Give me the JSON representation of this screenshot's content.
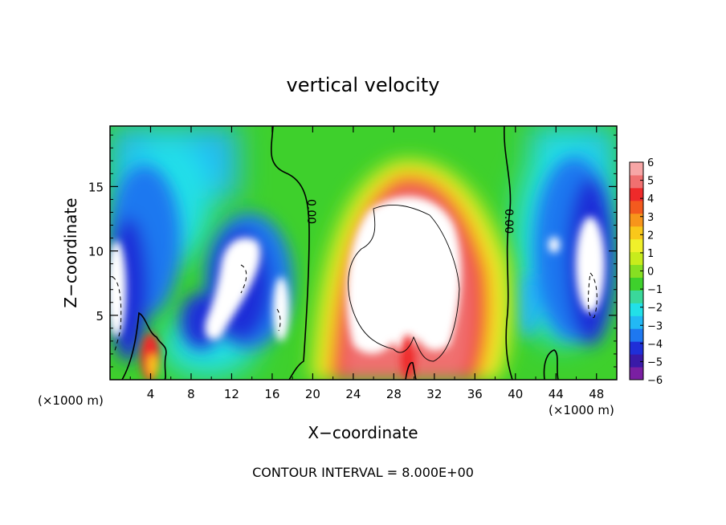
{
  "chart_data": {
    "type": "heatmap",
    "title": "vertical velocity",
    "xlabel": "X−coordinate",
    "ylabel": "Z−coordinate",
    "x_unit_left": "(×1000 m)",
    "x_unit_right": "(×1000 m)",
    "footer": "CONTOUR INTERVAL = 8.000E+00",
    "xlim": [
      0,
      50
    ],
    "ylim": [
      0,
      19.7
    ],
    "x_ticks": [
      4,
      8,
      12,
      16,
      20,
      24,
      28,
      32,
      36,
      40,
      44,
      48
    ],
    "x_tick_labels": [
      "4",
      "8",
      "12",
      "16",
      "20",
      "24",
      "28",
      "32",
      "36",
      "40",
      "44",
      "48"
    ],
    "y_ticks": [
      5,
      10,
      15
    ],
    "y_tick_labels": [
      "5",
      "10",
      "15"
    ],
    "zero_contour_label": "0.00",
    "colorbar": {
      "range": [
        -6,
        6
      ],
      "tick_labels": [
        "6",
        "5",
        "4",
        "3",
        "2",
        "1",
        "0",
        "−1",
        "−2",
        "−3",
        "−4",
        "−5",
        "−6"
      ],
      "colors": [
        "#7a1fa2",
        "#3a1aa8",
        "#1f2fd8",
        "#1e78f0",
        "#22b8f5",
        "#22e0e8",
        "#3ad89a",
        "#3ed02c",
        "#86df22",
        "#c8ec1c",
        "#f0f02a",
        "#f9c81a",
        "#f7951b",
        "#f35a1e",
        "#ee2a2a",
        "#f07070",
        "#f7a6a6"
      ]
    }
  }
}
